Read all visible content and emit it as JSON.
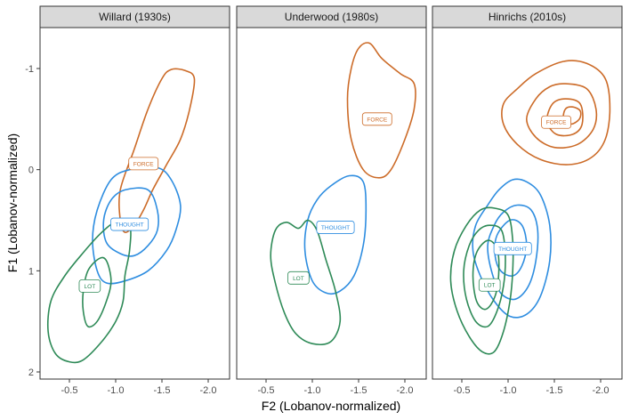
{
  "chart_data": {
    "type": "contour",
    "xlabel": "F2 (Lobanov-normalized)",
    "ylabel": "F1 (Lobanov-normalized)",
    "x_reversed": true,
    "y_reversed": true,
    "xlim": [
      -0.3,
      -2.3
    ],
    "ylim": [
      -1.4,
      2.1
    ],
    "x_ticks": [
      -0.5,
      -1.0,
      -1.5,
      -2.0
    ],
    "x_tick_labels": [
      "-0.5",
      "-1.0",
      "-1.5",
      "-2.0"
    ],
    "y_ticks": [
      -1,
      0,
      1,
      2
    ],
    "y_tick_labels": [
      "-1",
      "0",
      "1",
      "2"
    ],
    "grid": false,
    "colors": {
      "FORCE": "#cc6b28",
      "THOUGHT": "#2e8de0",
      "LOT": "#2e8a57"
    },
    "panels": [
      {
        "title": "Willard (1930s)",
        "labels": [
          {
            "text": "FORCE",
            "x": -1.3,
            "y": -0.06
          },
          {
            "text": "THOUGHT",
            "x": -1.15,
            "y": 0.54
          },
          {
            "text": "LOT",
            "x": -0.72,
            "y": 1.15
          }
        ],
        "contours": [
          {
            "vowel": "FORCE",
            "points": [
              [
                -1.85,
                -0.9
              ],
              [
                -1.8,
                -0.6
              ],
              [
                -1.7,
                -0.3
              ],
              [
                -1.55,
                -0.05
              ],
              [
                -1.4,
                0.2
              ],
              [
                -1.3,
                0.4
              ],
              [
                -1.2,
                0.55
              ],
              [
                -1.1,
                0.62
              ],
              [
                -1.05,
                0.5
              ],
              [
                -1.05,
                0.2
              ],
              [
                -1.2,
                -0.2
              ],
              [
                -1.35,
                -0.6
              ],
              [
                -1.5,
                -0.9
              ],
              [
                -1.6,
                -0.99
              ],
              [
                -1.75,
                -0.98
              ]
            ]
          },
          {
            "vowel": "THOUGHT",
            "points": [
              [
                -1.15,
                0.0
              ],
              [
                -1.45,
                -0.02
              ],
              [
                -1.6,
                0.1
              ],
              [
                -1.7,
                0.35
              ],
              [
                -1.65,
                0.6
              ],
              [
                -1.55,
                0.8
              ],
              [
                -1.35,
                1.0
              ],
              [
                -1.1,
                1.1
              ],
              [
                -0.9,
                1.12
              ],
              [
                -0.8,
                1.0
              ],
              [
                -0.75,
                0.7
              ],
              [
                -0.8,
                0.4
              ],
              [
                -0.95,
                0.1
              ]
            ]
          },
          {
            "vowel": "THOUGHT",
            "points": [
              [
                -1.1,
                0.2
              ],
              [
                -1.35,
                0.2
              ],
              [
                -1.45,
                0.4
              ],
              [
                -1.45,
                0.6
              ],
              [
                -1.35,
                0.75
              ],
              [
                -1.2,
                0.85
              ],
              [
                -1.05,
                0.83
              ],
              [
                -0.9,
                0.72
              ],
              [
                -0.87,
                0.5
              ],
              [
                -0.95,
                0.3
              ]
            ]
          },
          {
            "vowel": "LOT",
            "points": [
              [
                -1.0,
                0.52
              ],
              [
                -1.15,
                0.55
              ],
              [
                -1.15,
                0.8
              ],
              [
                -1.1,
                1.05
              ],
              [
                -1.08,
                1.3
              ],
              [
                -1.0,
                1.5
              ],
              [
                -0.85,
                1.7
              ],
              [
                -0.65,
                1.88
              ],
              [
                -0.5,
                1.9
              ],
              [
                -0.35,
                1.82
              ],
              [
                -0.27,
                1.6
              ],
              [
                -0.3,
                1.3
              ],
              [
                -0.45,
                1.05
              ],
              [
                -0.65,
                0.82
              ],
              [
                -0.85,
                0.62
              ]
            ]
          },
          {
            "vowel": "LOT",
            "points": [
              [
                -0.82,
                0.88
              ],
              [
                -0.9,
                0.9
              ],
              [
                -0.95,
                1.1
              ],
              [
                -0.9,
                1.3
              ],
              [
                -0.8,
                1.5
              ],
              [
                -0.7,
                1.55
              ],
              [
                -0.65,
                1.4
              ],
              [
                -0.65,
                1.2
              ],
              [
                -0.7,
                1.0
              ]
            ]
          }
        ]
      },
      {
        "title": "Underwood (1980s)",
        "labels": [
          {
            "text": "FORCE",
            "x": -1.7,
            "y": -0.5
          },
          {
            "text": "THOUGHT",
            "x": -1.25,
            "y": 0.57
          },
          {
            "text": "LOT",
            "x": -0.85,
            "y": 1.07
          }
        ],
        "contours": [
          {
            "vowel": "FORCE",
            "points": [
              [
                -1.62,
                -1.25
              ],
              [
                -1.75,
                -1.1
              ],
              [
                -1.95,
                -0.95
              ],
              [
                -2.1,
                -0.85
              ],
              [
                -2.1,
                -0.6
              ],
              [
                -2.0,
                -0.3
              ],
              [
                -1.85,
                0.0
              ],
              [
                -1.72,
                0.08
              ],
              [
                -1.55,
                0.0
              ],
              [
                -1.42,
                -0.3
              ],
              [
                -1.38,
                -0.7
              ],
              [
                -1.42,
                -1.0
              ],
              [
                -1.5,
                -1.2
              ]
            ]
          },
          {
            "vowel": "THOUGHT",
            "points": [
              [
                -1.4,
                0.06
              ],
              [
                -1.55,
                0.12
              ],
              [
                -1.58,
                0.4
              ],
              [
                -1.55,
                0.75
              ],
              [
                -1.45,
                1.05
              ],
              [
                -1.3,
                1.2
              ],
              [
                -1.15,
                1.22
              ],
              [
                -1.0,
                1.1
              ],
              [
                -0.92,
                0.8
              ],
              [
                -0.95,
                0.5
              ],
              [
                -1.05,
                0.3
              ],
              [
                -1.2,
                0.16
              ]
            ]
          },
          {
            "vowel": "LOT",
            "points": [
              [
                -0.95,
                0.5
              ],
              [
                -1.05,
                0.6
              ],
              [
                -1.15,
                0.9
              ],
              [
                -1.25,
                1.2
              ],
              [
                -1.3,
                1.5
              ],
              [
                -1.2,
                1.7
              ],
              [
                -1.0,
                1.72
              ],
              [
                -0.82,
                1.62
              ],
              [
                -0.7,
                1.42
              ],
              [
                -0.6,
                1.12
              ],
              [
                -0.55,
                0.85
              ],
              [
                -0.6,
                0.6
              ],
              [
                -0.72,
                0.52
              ],
              [
                -0.85,
                0.58
              ]
            ]
          }
        ]
      },
      {
        "title": "Hinrichs (2010s)",
        "labels": [
          {
            "text": "FORCE",
            "x": -1.52,
            "y": -0.47
          },
          {
            "text": "THOUGHT",
            "x": -1.05,
            "y": 0.78
          },
          {
            "text": "LOT",
            "x": -0.8,
            "y": 1.14
          }
        ],
        "contours": [
          {
            "vowel": "FORCE",
            "points": [
              [
                -1.6,
                -1.07
              ],
              [
                -1.85,
                -1.05
              ],
              [
                -2.05,
                -0.9
              ],
              [
                -2.1,
                -0.6
              ],
              [
                -2.05,
                -0.3
              ],
              [
                -1.9,
                -0.12
              ],
              [
                -1.65,
                -0.05
              ],
              [
                -1.35,
                -0.1
              ],
              [
                -1.1,
                -0.25
              ],
              [
                -0.95,
                -0.45
              ],
              [
                -0.95,
                -0.65
              ],
              [
                -1.1,
                -0.8
              ],
              [
                -1.3,
                -0.95
              ]
            ]
          },
          {
            "vowel": "FORCE",
            "points": [
              [
                -1.62,
                -0.85
              ],
              [
                -1.85,
                -0.8
              ],
              [
                -1.95,
                -0.6
              ],
              [
                -1.92,
                -0.4
              ],
              [
                -1.75,
                -0.25
              ],
              [
                -1.5,
                -0.22
              ],
              [
                -1.3,
                -0.32
              ],
              [
                -1.2,
                -0.5
              ],
              [
                -1.3,
                -0.7
              ],
              [
                -1.45,
                -0.82
              ]
            ]
          },
          {
            "vowel": "FORCE",
            "points": [
              [
                -1.62,
                -0.7
              ],
              [
                -1.78,
                -0.65
              ],
              [
                -1.8,
                -0.45
              ],
              [
                -1.7,
                -0.35
              ],
              [
                -1.52,
                -0.35
              ],
              [
                -1.42,
                -0.48
              ],
              [
                -1.48,
                -0.65
              ]
            ]
          },
          {
            "vowel": "FORCE",
            "points": [
              [
                -1.7,
                -0.62
              ],
              [
                -1.78,
                -0.58
              ],
              [
                -1.77,
                -0.5
              ],
              [
                -1.68,
                -0.45
              ],
              [
                -1.6,
                -0.5
              ],
              [
                -1.62,
                -0.6
              ]
            ]
          },
          {
            "vowel": "THOUGHT",
            "points": [
              [
                -1.05,
                0.1
              ],
              [
                -1.2,
                0.12
              ],
              [
                -1.35,
                0.25
              ],
              [
                -1.45,
                0.55
              ],
              [
                -1.45,
                0.9
              ],
              [
                -1.35,
                1.25
              ],
              [
                -1.2,
                1.43
              ],
              [
                -1.02,
                1.45
              ],
              [
                -0.85,
                1.3
              ],
              [
                -0.7,
                1.05
              ],
              [
                -0.62,
                0.8
              ],
              [
                -0.65,
                0.55
              ],
              [
                -0.78,
                0.35
              ],
              [
                -0.9,
                0.2
              ]
            ]
          },
          {
            "vowel": "THOUGHT",
            "points": [
              [
                -1.1,
                0.35
              ],
              [
                -1.25,
                0.4
              ],
              [
                -1.32,
                0.6
              ],
              [
                -1.3,
                0.9
              ],
              [
                -1.22,
                1.15
              ],
              [
                -1.08,
                1.28
              ],
              [
                -0.92,
                1.22
              ],
              [
                -0.82,
                1.0
              ],
              [
                -0.78,
                0.75
              ],
              [
                -0.85,
                0.55
              ],
              [
                -0.95,
                0.42
              ]
            ]
          },
          {
            "vowel": "THOUGHT",
            "points": [
              [
                -1.02,
                0.5
              ],
              [
                -1.15,
                0.55
              ],
              [
                -1.2,
                0.75
              ],
              [
                -1.15,
                0.95
              ],
              [
                -1.05,
                1.05
              ],
              [
                -0.92,
                1.0
              ],
              [
                -0.86,
                0.85
              ],
              [
                -0.88,
                0.65
              ]
            ]
          },
          {
            "vowel": "LOT",
            "points": [
              [
                -0.85,
                0.38
              ],
              [
                -1.0,
                0.45
              ],
              [
                -1.05,
                0.7
              ],
              [
                -1.05,
                1.0
              ],
              [
                -1.02,
                1.3
              ],
              [
                -0.95,
                1.6
              ],
              [
                -0.85,
                1.8
              ],
              [
                -0.72,
                1.8
              ],
              [
                -0.58,
                1.65
              ],
              [
                -0.45,
                1.4
              ],
              [
                -0.38,
                1.1
              ],
              [
                -0.42,
                0.8
              ],
              [
                -0.55,
                0.55
              ],
              [
                -0.7,
                0.4
              ]
            ]
          },
          {
            "vowel": "LOT",
            "points": [
              [
                -0.8,
                0.55
              ],
              [
                -0.93,
                0.6
              ],
              [
                -0.97,
                0.85
              ],
              [
                -0.95,
                1.15
              ],
              [
                -0.88,
                1.4
              ],
              [
                -0.78,
                1.55
              ],
              [
                -0.65,
                1.5
              ],
              [
                -0.55,
                1.28
              ],
              [
                -0.52,
                1.0
              ],
              [
                -0.58,
                0.75
              ],
              [
                -0.68,
                0.6
              ]
            ]
          },
          {
            "vowel": "LOT",
            "points": [
              [
                -0.78,
                0.7
              ],
              [
                -0.88,
                0.78
              ],
              [
                -0.9,
                1.0
              ],
              [
                -0.86,
                1.25
              ],
              [
                -0.76,
                1.38
              ],
              [
                -0.66,
                1.3
              ],
              [
                -0.62,
                1.05
              ],
              [
                -0.66,
                0.82
              ]
            ]
          }
        ]
      }
    ]
  }
}
